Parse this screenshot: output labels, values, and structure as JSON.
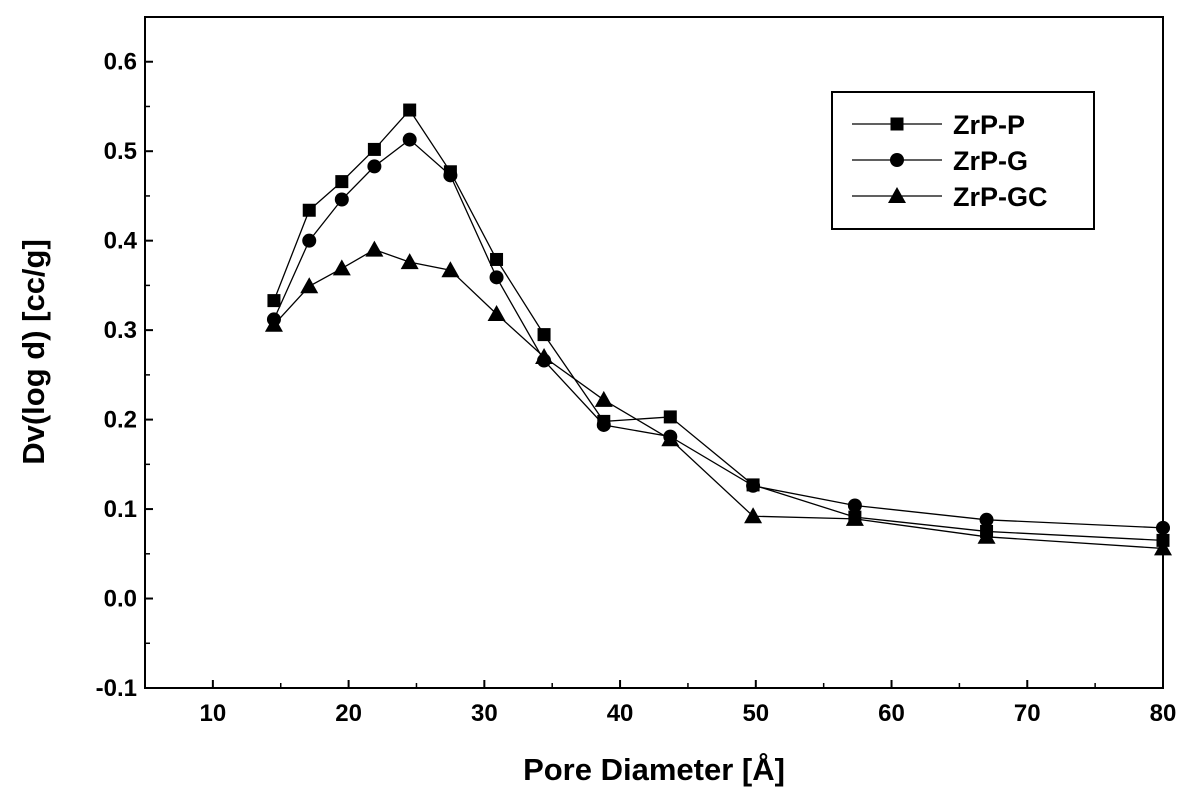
{
  "chart_data": {
    "type": "line",
    "xlabel": "Pore Diameter [Å]",
    "ylabel": "Dv(log d) [cc/g]",
    "xlim": [
      5,
      80
    ],
    "ylim": [
      -0.1,
      0.65
    ],
    "x_ticks": [
      10,
      20,
      30,
      40,
      50,
      60,
      70,
      80
    ],
    "y_ticks": [
      -0.1,
      0.0,
      0.1,
      0.2,
      0.3,
      0.4,
      0.5,
      0.6
    ],
    "x_tick_labels": [
      "10",
      "20",
      "30",
      "40",
      "50",
      "60",
      "70",
      "80"
    ],
    "y_tick_labels": [
      "-0.1",
      "0.0",
      "0.1",
      "0.2",
      "0.3",
      "0.4",
      "0.5",
      "0.6"
    ],
    "grid": false,
    "legend_position": "top-right",
    "series": [
      {
        "name": "ZrP-P",
        "marker": "square",
        "x": [
          14.5,
          17.1,
          19.5,
          21.9,
          24.5,
          27.5,
          30.9,
          34.4,
          38.8,
          43.7,
          49.8,
          57.3,
          67.0,
          80.0
        ],
        "y": [
          0.333,
          0.434,
          0.466,
          0.502,
          0.546,
          0.477,
          0.379,
          0.295,
          0.198,
          0.203,
          0.127,
          0.091,
          0.075,
          0.065
        ]
      },
      {
        "name": "ZrP-G",
        "marker": "circle",
        "x": [
          14.5,
          17.1,
          19.5,
          21.9,
          24.5,
          27.5,
          30.9,
          34.4,
          38.8,
          43.7,
          49.8,
          57.3,
          67.0,
          80.0
        ],
        "y": [
          0.312,
          0.4,
          0.446,
          0.483,
          0.513,
          0.473,
          0.359,
          0.266,
          0.194,
          0.181,
          0.126,
          0.104,
          0.088,
          0.079
        ]
      },
      {
        "name": "ZrP-GC",
        "marker": "triangle",
        "x": [
          14.5,
          17.1,
          19.5,
          21.9,
          24.5,
          27.5,
          30.9,
          34.4,
          38.8,
          43.7,
          49.8,
          57.3,
          67.0,
          80.0
        ],
        "y": [
          0.306,
          0.349,
          0.369,
          0.39,
          0.376,
          0.367,
          0.318,
          0.27,
          0.222,
          0.178,
          0.092,
          0.089,
          0.069,
          0.056
        ]
      }
    ]
  }
}
